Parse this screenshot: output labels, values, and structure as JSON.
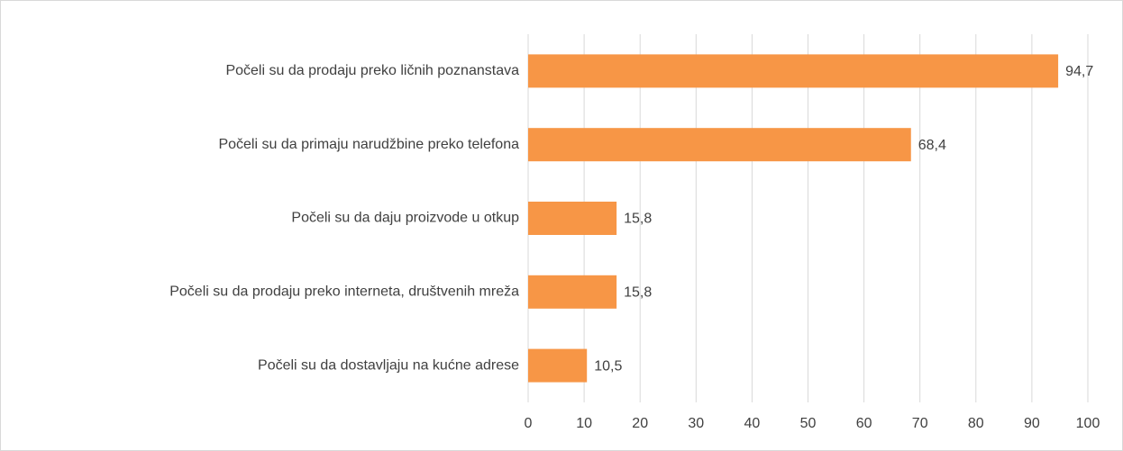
{
  "chart_data": {
    "type": "bar",
    "orientation": "horizontal",
    "categories": [
      "Počeli su da prodaju preko ličnih poznanstava",
      "Počeli su da primaju narudžbine preko telefona",
      "Počeli su da daju proizvode u otkup",
      "Počeli su da prodaju preko interneta, društvenih mreža",
      "Počeli su da dostavljaju na kućne adrese"
    ],
    "values": [
      94.7,
      68.4,
      15.8,
      15.8,
      10.5
    ],
    "value_labels": [
      "94,7",
      "68,4",
      "15,8",
      "15,8",
      "10,5"
    ],
    "color": "#f79646",
    "xlim": [
      0,
      100
    ],
    "xticks": [
      0,
      10,
      20,
      30,
      40,
      50,
      60,
      70,
      80,
      90,
      100
    ],
    "grid": true
  }
}
